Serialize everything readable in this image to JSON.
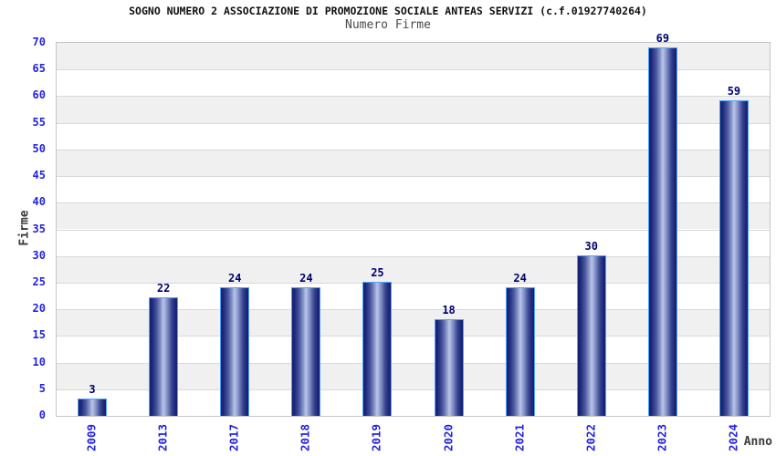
{
  "header": {
    "title": "SOGNO NUMERO 2 ASSOCIAZIONE DI PROMOZIONE SOCIALE ANTEAS SERVIZI (c.f.01927740264)",
    "subtitle": "Numero Firme"
  },
  "chart_data": {
    "type": "bar",
    "title": "SOGNO NUMERO 2 ASSOCIAZIONE DI PROMOZIONE SOCIALE ANTEAS SERVIZI (c.f.01927740264)",
    "subtitle": "Numero Firme",
    "xlabel": "Anno",
    "ylabel": "Firme",
    "categories": [
      "2009",
      "2013",
      "2017",
      "2018",
      "2019",
      "2020",
      "2021",
      "2022",
      "2023",
      "2024"
    ],
    "values": [
      3,
      22,
      24,
      24,
      25,
      18,
      24,
      30,
      69,
      59
    ],
    "ylim": [
      0,
      70
    ],
    "ytick_step": 5,
    "legend": "none",
    "grid": "horizontal-gridlines-with-alternating-bands",
    "colors": {
      "tick_label": "#2222dd",
      "value_label": "#000070",
      "bar_dark": "#141f6e",
      "bar_highlight": "#bac5e8",
      "bar_border": "#55a2fa",
      "band_gray": "#f0f0f0",
      "band_white": "#ffffff",
      "gridline": "#d9d9d9",
      "plot_border": "#c4c4c4",
      "title_color": "#111111",
      "axis_label_color": "#3a3a3a"
    }
  }
}
